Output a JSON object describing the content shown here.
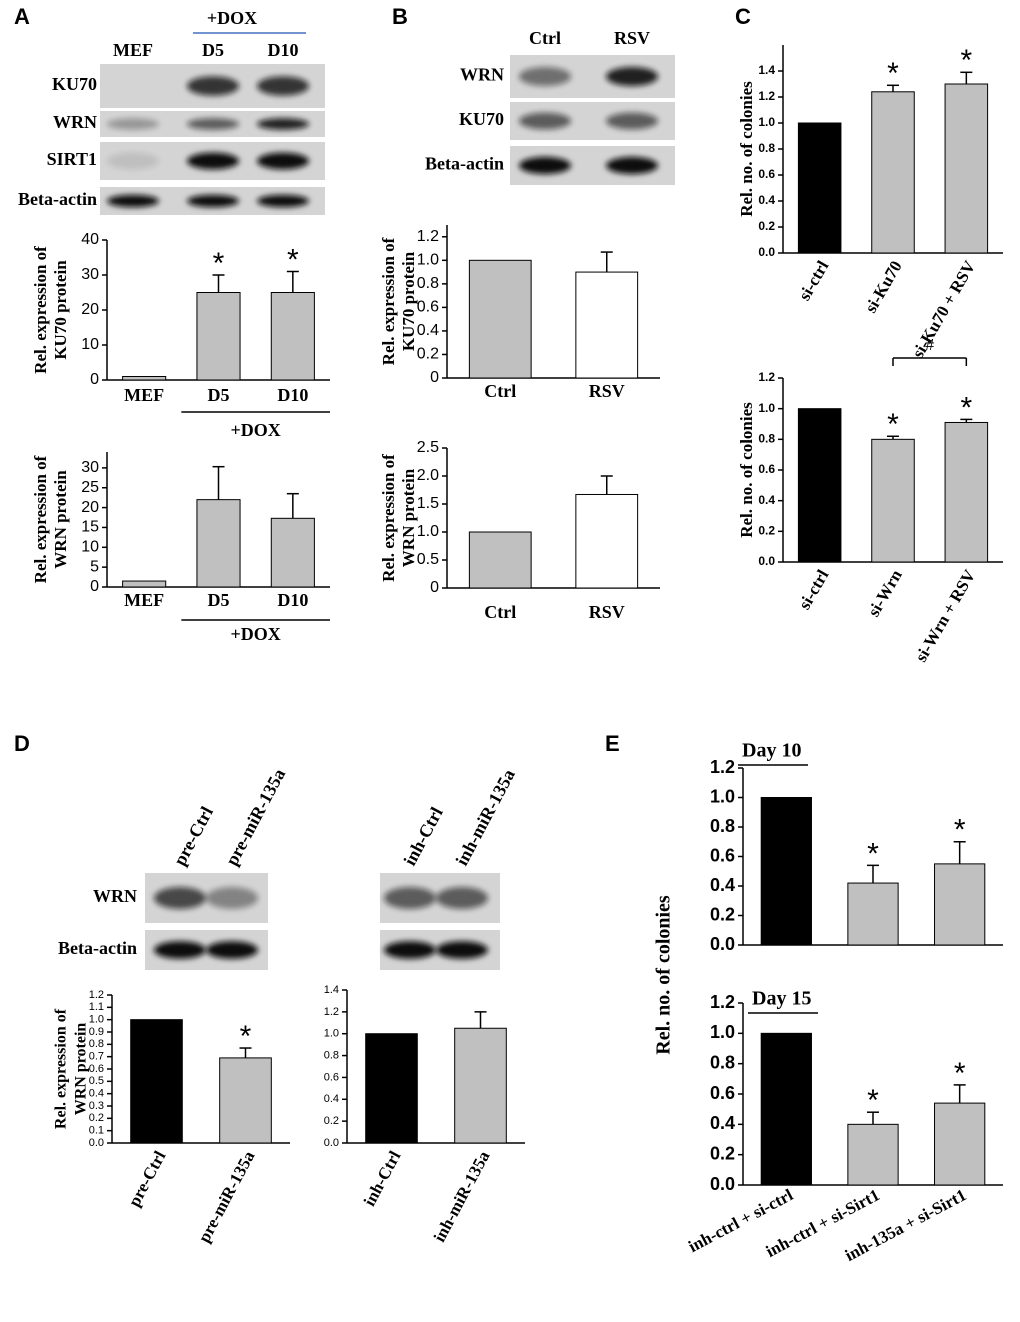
{
  "panel_labels": [
    "A",
    "B",
    "C",
    "D",
    "E"
  ],
  "blots": [
    {
      "columns": [
        "MEF",
        "D5",
        "D10"
      ],
      "group": "+DOX",
      "rows": [
        "KU70",
        "WRN",
        "SIRT1",
        "Beta-actin"
      ]
    },
    {
      "columns": [
        "Ctrl",
        "RSV"
      ],
      "rows": [
        "WRN",
        "KU70",
        "Beta-actin"
      ]
    },
    {
      "columns": [
        "pre-Ctrl",
        "pre-miR-135a"
      ],
      "rows": [
        "WRN",
        "Beta-actin"
      ]
    },
    {
      "columns": [
        "inh-Ctrl",
        "inh-miR-135a"
      ]
    }
  ],
  "chart_data": [
    {
      "type": "bar",
      "ylabel": [
        "Rel. expression of",
        "KU70 protein"
      ],
      "categories": [
        "MEF",
        "D5",
        "D10"
      ],
      "values": [
        1,
        25,
        25
      ],
      "errors": [
        null,
        5,
        6
      ],
      "colors": [
        "#c0c0c0",
        "#c0c0c0",
        "#c0c0c0"
      ],
      "significance": [
        null,
        "*",
        "*"
      ],
      "group_label": "+DOX",
      "ylim": [
        0,
        40
      ],
      "yticks": [
        0,
        10,
        20,
        30,
        40
      ]
    },
    {
      "type": "bar",
      "ylabel": [
        "Rel. expression of",
        "WRN protein"
      ],
      "categories": [
        "MEF",
        "D5",
        "D10"
      ],
      "values": [
        1.5,
        22,
        17.3
      ],
      "errors": [
        null,
        8.3,
        6.2
      ],
      "colors": [
        "#c0c0c0",
        "#c0c0c0",
        "#c0c0c0"
      ],
      "group_label": "+DOX",
      "ylim": [
        0,
        34
      ],
      "yticks": [
        0,
        5,
        10,
        15,
        20,
        25,
        30
      ]
    },
    {
      "type": "bar",
      "ylabel": [
        "Rel. expression of",
        "KU70 protein"
      ],
      "categories": [
        "Ctrl",
        "RSV"
      ],
      "values": [
        1,
        0.9
      ],
      "errors": [
        null,
        0.17
      ],
      "colors": [
        "#c0c0c0",
        "#ffffff"
      ],
      "ylim": [
        0,
        1.3
      ],
      "yticks": [
        0,
        0.2,
        0.4,
        0.6,
        0.8,
        {
          "value": 1,
          "label": "1.0"
        },
        1.2
      ]
    },
    {
      "type": "bar",
      "ylabel": [
        "Rel. expression of",
        "WRN protein"
      ],
      "categories": [
        "Ctrl",
        "RSV"
      ],
      "values": [
        1,
        1.67
      ],
      "errors": [
        null,
        0.33
      ],
      "colors": [
        "#c0c0c0",
        "#ffffff"
      ],
      "ylim": [
        0,
        2.5
      ],
      "yticks": [
        0,
        0.5,
        {
          "value": 1,
          "label": "1.0"
        },
        1.5,
        {
          "value": 2,
          "label": "2.0"
        },
        2.5
      ]
    },
    {
      "type": "bar",
      "ylabel": [
        "Rel. no. of colonies"
      ],
      "categories": [
        "si-ctrl",
        "si-Ku70",
        "si-Ku70 + RSV"
      ],
      "values": [
        1,
        1.24,
        1.3
      ],
      "errors": [
        null,
        0.05,
        0.09
      ],
      "colors": [
        "#000000",
        "#c0c0c0",
        "#c0c0c0"
      ],
      "significance": [
        null,
        "*",
        "*"
      ],
      "ylim": [
        0,
        1.6
      ],
      "yticks": [
        {
          "value": 0,
          "label": "0.0"
        },
        0.2,
        0.4,
        0.6,
        0.8,
        {
          "value": 1,
          "label": "1.0"
        },
        1.2,
        1.4
      ]
    },
    {
      "type": "bar",
      "ylabel": [
        "Rel. no. of colonies"
      ],
      "categories": [
        "si-ctrl",
        "si-Wrn",
        "si-Wrn + RSV"
      ],
      "values": [
        1,
        0.8,
        0.91
      ],
      "errors": [
        null,
        0.02,
        0.02
      ],
      "colors": [
        "#000000",
        "#c0c0c0",
        "#c0c0c0"
      ],
      "significance": [
        null,
        "*",
        "*"
      ],
      "bracket_label": "#",
      "ylim": [
        0,
        1.2
      ],
      "yticks": [
        {
          "value": 0,
          "label": "0.0"
        },
        0.2,
        0.4,
        0.6,
        0.8,
        {
          "value": 1,
          "label": "1.0"
        },
        1.2
      ]
    },
    {
      "type": "bar",
      "ylabel": [
        "Rel. expression of",
        "WRN protein"
      ],
      "categories": [
        "pre-Ctrl",
        "pre-miR-135a"
      ],
      "values": [
        1,
        0.69
      ],
      "errors": [
        null,
        0.08
      ],
      "colors": [
        "#000000",
        "#c0c0c0"
      ],
      "significance": [
        null,
        "*"
      ],
      "ylim": [
        0,
        1.2
      ],
      "yticks": [
        {
          "value": 0,
          "label": "0.0"
        },
        0.1,
        0.2,
        0.3,
        0.4,
        0.5,
        0.6,
        0.7,
        0.8,
        0.9,
        {
          "value": 1,
          "label": "1.0"
        },
        1.1,
        1.2
      ]
    },
    {
      "type": "bar",
      "categories": [
        "inh-Ctrl",
        "inh-miR-135a"
      ],
      "values": [
        1,
        1.05
      ],
      "errors": [
        null,
        0.15
      ],
      "colors": [
        "#000000",
        "#c0c0c0"
      ],
      "ylim": [
        0,
        1.4
      ],
      "yticks": [
        {
          "value": 0,
          "label": "0.0"
        },
        0.2,
        0.4,
        0.6,
        0.8,
        {
          "value": 1,
          "label": "1.0"
        },
        1.2,
        1.4
      ]
    },
    {
      "type": "bar",
      "title": "Day 10",
      "ylabel": [
        "Rel. no. of colonies"
      ],
      "categories": [
        null,
        null,
        null
      ],
      "values": [
        1,
        0.42,
        0.55
      ],
      "errors": [
        null,
        0.12,
        0.15
      ],
      "colors": [
        "#000000",
        "#c0c0c0",
        "#c0c0c0"
      ],
      "significance": [
        null,
        "*",
        "*"
      ],
      "ylim": [
        0,
        1.2
      ],
      "yticks": [
        {
          "value": 0,
          "label": "0.0"
        },
        0.2,
        0.4,
        0.6,
        0.8,
        {
          "value": 1,
          "label": "1.0"
        },
        1.2
      ]
    },
    {
      "type": "bar",
      "title": "Day 15",
      "categories": [
        "inh-ctrl + si-ctrl",
        "inh-ctrl + si-Sirt1",
        "inh-135a + si-Sirt1"
      ],
      "values": [
        1,
        0.4,
        0.54
      ],
      "errors": [
        null,
        0.08,
        0.12
      ],
      "colors": [
        "#000000",
        "#c0c0c0",
        "#c0c0c0"
      ],
      "significance": [
        null,
        "*",
        "*"
      ],
      "ylim": [
        0,
        1.2
      ],
      "yticks": [
        {
          "value": 0,
          "label": "0.0"
        },
        0.2,
        0.4,
        0.6,
        0.8,
        {
          "value": 1,
          "label": "1.0"
        },
        1.2
      ]
    }
  ]
}
